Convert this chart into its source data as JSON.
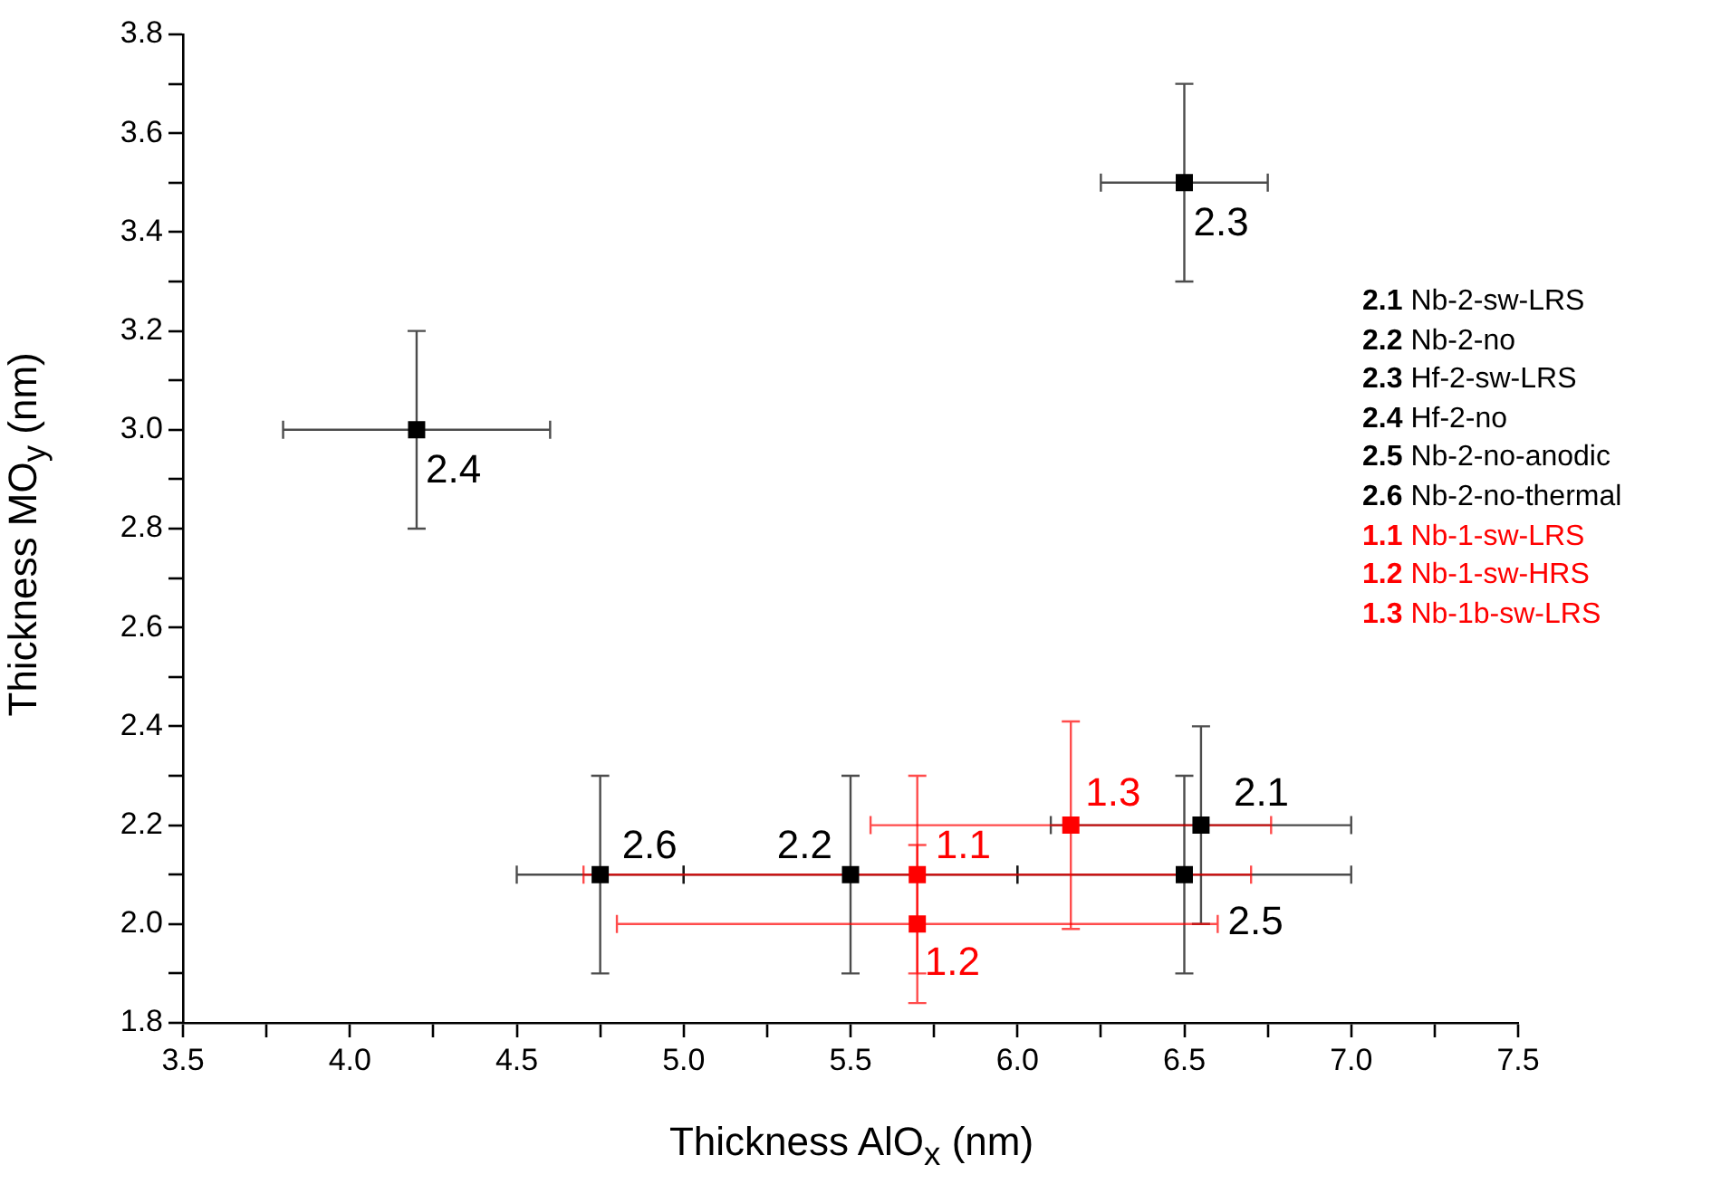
{
  "chart_data": {
    "type": "scatter",
    "xlabel": "Thickness AlO$_{x}$ (nm)",
    "ylabel": "Thickness MO$_{y}$ (nm)",
    "xlim": [
      3.5,
      7.5
    ],
    "ylim": [
      1.8,
      3.8
    ],
    "xticks": [
      3.5,
      {
        "value": 3.75,
        "label": null
      },
      {
        "value": 4,
        "label": "4.0"
      },
      {
        "value": 4.25,
        "label": null
      },
      4.5,
      {
        "value": 4.75,
        "label": null
      },
      {
        "value": 5,
        "label": "5.0"
      },
      {
        "value": 5.25,
        "label": null
      },
      5.5,
      {
        "value": 5.75,
        "label": null
      },
      {
        "value": 6,
        "label": "6.0"
      },
      {
        "value": 6.25,
        "label": null
      },
      6.5,
      {
        "value": 6.75,
        "label": null
      },
      {
        "value": 7,
        "label": "7.0"
      },
      {
        "value": 7.25,
        "label": null
      },
      7.5
    ],
    "yticks": [
      1.8,
      {
        "value": 1.9,
        "label": null
      },
      {
        "value": 2,
        "label": "2.0"
      },
      {
        "value": 2.1,
        "label": null
      },
      2.2,
      {
        "value": 2.3,
        "label": null
      },
      2.4,
      {
        "value": 2.5,
        "label": null
      },
      2.6,
      {
        "value": 2.7,
        "label": null
      },
      2.8,
      {
        "value": 2.9,
        "label": null
      },
      {
        "value": 3,
        "label": "3.0"
      },
      {
        "value": 3.1,
        "label": null
      },
      3.2,
      {
        "value": 3.3,
        "label": null
      },
      3.4,
      {
        "value": 3.5,
        "label": null
      },
      3.6,
      {
        "value": 3.7,
        "label": null
      },
      3.8
    ],
    "marker": "square",
    "grid": false,
    "series": [
      {
        "name": "2.1",
        "color": "#000000",
        "x": [
          6.55
        ],
        "values": [
          2.2
        ],
        "errors": [
          0.2
        ],
        "xerrors": [
          0.45
        ]
      },
      {
        "name": "2.2",
        "color": "#000000",
        "x": [
          5.5
        ],
        "values": [
          2.1
        ],
        "errors": [
          0.2
        ],
        "xerrors": [
          0.5
        ]
      },
      {
        "name": "2.3",
        "color": "#000000",
        "x": [
          6.5
        ],
        "values": [
          3.5
        ],
        "errors": [
          0.2
        ],
        "xerrors": [
          0.25
        ]
      },
      {
        "name": "2.4",
        "color": "#000000",
        "x": [
          4.2
        ],
        "values": [
          3.0
        ],
        "errors": [
          0.2
        ],
        "xerrors": [
          0.4
        ]
      },
      {
        "name": "2.5",
        "color": "#000000",
        "x": [
          6.5
        ],
        "values": [
          2.1
        ],
        "errors": [
          0.2
        ],
        "xerrors": [
          0.5
        ]
      },
      {
        "name": "2.6",
        "color": "#000000",
        "x": [
          4.75
        ],
        "values": [
          2.1
        ],
        "errors": [
          0.2
        ],
        "xerrors": [
          0.25
        ]
      },
      {
        "name": "1.1",
        "color": "#ff0000",
        "x": [
          5.7
        ],
        "values": [
          2.1
        ],
        "errors": [
          0.2
        ],
        "xerrors": [
          1.0
        ]
      },
      {
        "name": "1.2",
        "color": "#ff0000",
        "x": [
          5.7
        ],
        "values": [
          2.0
        ],
        "errors": [
          0.16
        ],
        "xerrors": [
          0.9
        ]
      },
      {
        "name": "1.3",
        "color": "#ff0000",
        "x": [
          6.16
        ],
        "values": [
          2.2
        ],
        "errors": [
          0.21
        ],
        "xerrors": [
          0.6
        ]
      }
    ],
    "annotations": [
      "2.1 Nb-2-sw-LRS",
      "2.2 Nb-2-no",
      "2.3 Hf-2-sw-LRS",
      "2.4 Hf-2-no",
      "2.5 Nb-2-no-anodic",
      "2.6 Nb-2-no-thermal",
      "1.1 Nb-1-sw-LRS",
      "1.2 Nb-1-sw-HRS",
      "1.3 Nb-1b-sw-LRS"
    ]
  }
}
